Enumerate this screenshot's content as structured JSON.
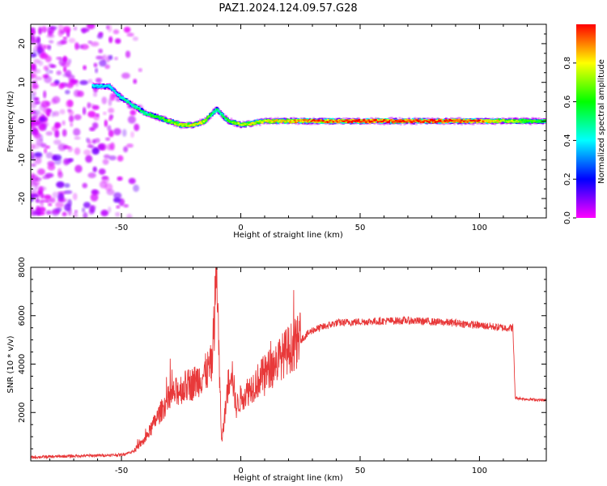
{
  "title": "PAZ1.2024.124.09.57.G28",
  "colors": {
    "snr_line": "#e8393a",
    "axis": "#000000"
  },
  "chart_data": [
    {
      "type": "heatmap",
      "xlabel": "Height of straight line (km)",
      "ylabel": "Frequency (Hz)",
      "xlim": [
        -88,
        128
      ],
      "ylim": [
        -25,
        25
      ],
      "x_ticks": [
        -50,
        0,
        50,
        100
      ],
      "x_tick_labels": [
        "-50",
        "0",
        "50",
        "100"
      ],
      "y_ticks": [
        -20,
        -10,
        0,
        10,
        20
      ],
      "y_tick_labels": [
        "-20",
        "-10",
        "0",
        "10",
        "20"
      ],
      "colorbar": {
        "label": "Normalized spectral amplitude",
        "range": [
          0,
          1
        ],
        "ticks": [
          0.0,
          0.2,
          0.4,
          0.6,
          0.8
        ],
        "tick_labels": [
          "0.0",
          "0.2",
          "0.4",
          "0.6",
          "0.8"
        ],
        "colormap": "gist_rainbow"
      },
      "ridge": {
        "x": [
          -62,
          -55,
          -50,
          -45,
          -40,
          -35,
          -30,
          -25,
          -20,
          -15,
          -12,
          -10,
          -7,
          -5,
          0,
          10,
          20,
          30,
          40,
          50,
          60,
          70,
          80,
          90,
          100,
          110,
          120,
          128
        ],
        "freq": [
          9,
          9,
          6,
          4,
          2,
          1,
          0,
          -1,
          -1,
          0,
          2,
          3,
          1,
          0,
          -1,
          0,
          0,
          0,
          0,
          0,
          0,
          0,
          0,
          0,
          0,
          0,
          0,
          0
        ],
        "amplitude": [
          0.35,
          0.35,
          0.4,
          0.45,
          0.5,
          0.55,
          0.65,
          0.7,
          0.75,
          0.7,
          0.5,
          0.45,
          0.5,
          0.6,
          0.7,
          0.75,
          0.8,
          0.9,
          0.95,
          1,
          1,
          1,
          1,
          0.95,
          0.9,
          0.7,
          0.6,
          0.55
        ]
      },
      "noise_region": {
        "x_range": [
          -88,
          -42
        ],
        "freq_range": [
          -25,
          25
        ]
      }
    },
    {
      "type": "line",
      "xlabel": "Height of straight line (km)",
      "ylabel": "SNR (10 * v/v)",
      "xlim": [
        -88,
        128
      ],
      "ylim": [
        0,
        8000
      ],
      "x_ticks": [
        -50,
        0,
        50,
        100
      ],
      "x_tick_labels": [
        "-50",
        "0",
        "50",
        "100"
      ],
      "y_ticks": [
        2000,
        4000,
        6000,
        8000
      ],
      "y_tick_labels": [
        "2000",
        "4000",
        "6000",
        "8000"
      ],
      "envelope": {
        "x": [
          -88,
          -70,
          -50,
          -45,
          -40,
          -35,
          -30,
          -25,
          -20,
          -15,
          -12,
          -10,
          -9,
          -8,
          -6,
          -4,
          -2,
          0,
          10,
          20,
          30,
          40,
          50,
          60,
          70,
          80,
          90,
          100,
          110,
          114,
          115,
          120,
          128
        ],
        "y": [
          150,
          200,
          250,
          400,
          900,
          1800,
          2600,
          3000,
          3200,
          3600,
          4000,
          8000,
          3600,
          800,
          2500,
          4000,
          2200,
          2600,
          3600,
          4600,
          5400,
          5700,
          5750,
          5780,
          5800,
          5750,
          5700,
          5600,
          5500,
          5500,
          2600,
          2550,
          2500
        ]
      }
    }
  ]
}
